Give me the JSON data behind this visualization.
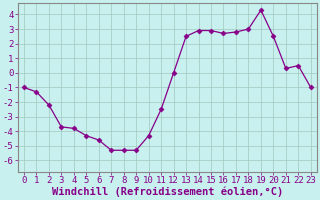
{
  "x": [
    0,
    1,
    2,
    3,
    4,
    5,
    6,
    7,
    8,
    9,
    10,
    11,
    12,
    13,
    14,
    15,
    16,
    17,
    18,
    19,
    20,
    21,
    22,
    23
  ],
  "y": [
    -1,
    -1.3,
    -2.2,
    -3.7,
    -3.8,
    -4.3,
    -4.6,
    -5.3,
    -5.3,
    -5.3,
    -4.3,
    -2.5,
    0.0,
    2.5,
    2.9,
    2.9,
    2.7,
    2.8,
    3.0,
    4.3,
    2.5,
    0.3,
    0.5,
    -1.0
  ],
  "line_color": "#880088",
  "marker": "D",
  "markersize": 2.5,
  "linewidth": 0.9,
  "bg_color": "#c8f0ee",
  "grid_color": "#a0c8be",
  "xlabel": "Windchill (Refroidissement éolien,°C)",
  "xlim": [
    -0.5,
    23.5
  ],
  "ylim": [
    -6.8,
    4.8
  ],
  "yticks": [
    -6,
    -5,
    -4,
    -3,
    -2,
    -1,
    0,
    1,
    2,
    3,
    4
  ],
  "xticks": [
    0,
    1,
    2,
    3,
    4,
    5,
    6,
    7,
    8,
    9,
    10,
    11,
    12,
    13,
    14,
    15,
    16,
    17,
    18,
    19,
    20,
    21,
    22,
    23
  ],
  "tick_fontsize": 6.5,
  "label_fontsize": 7.5
}
